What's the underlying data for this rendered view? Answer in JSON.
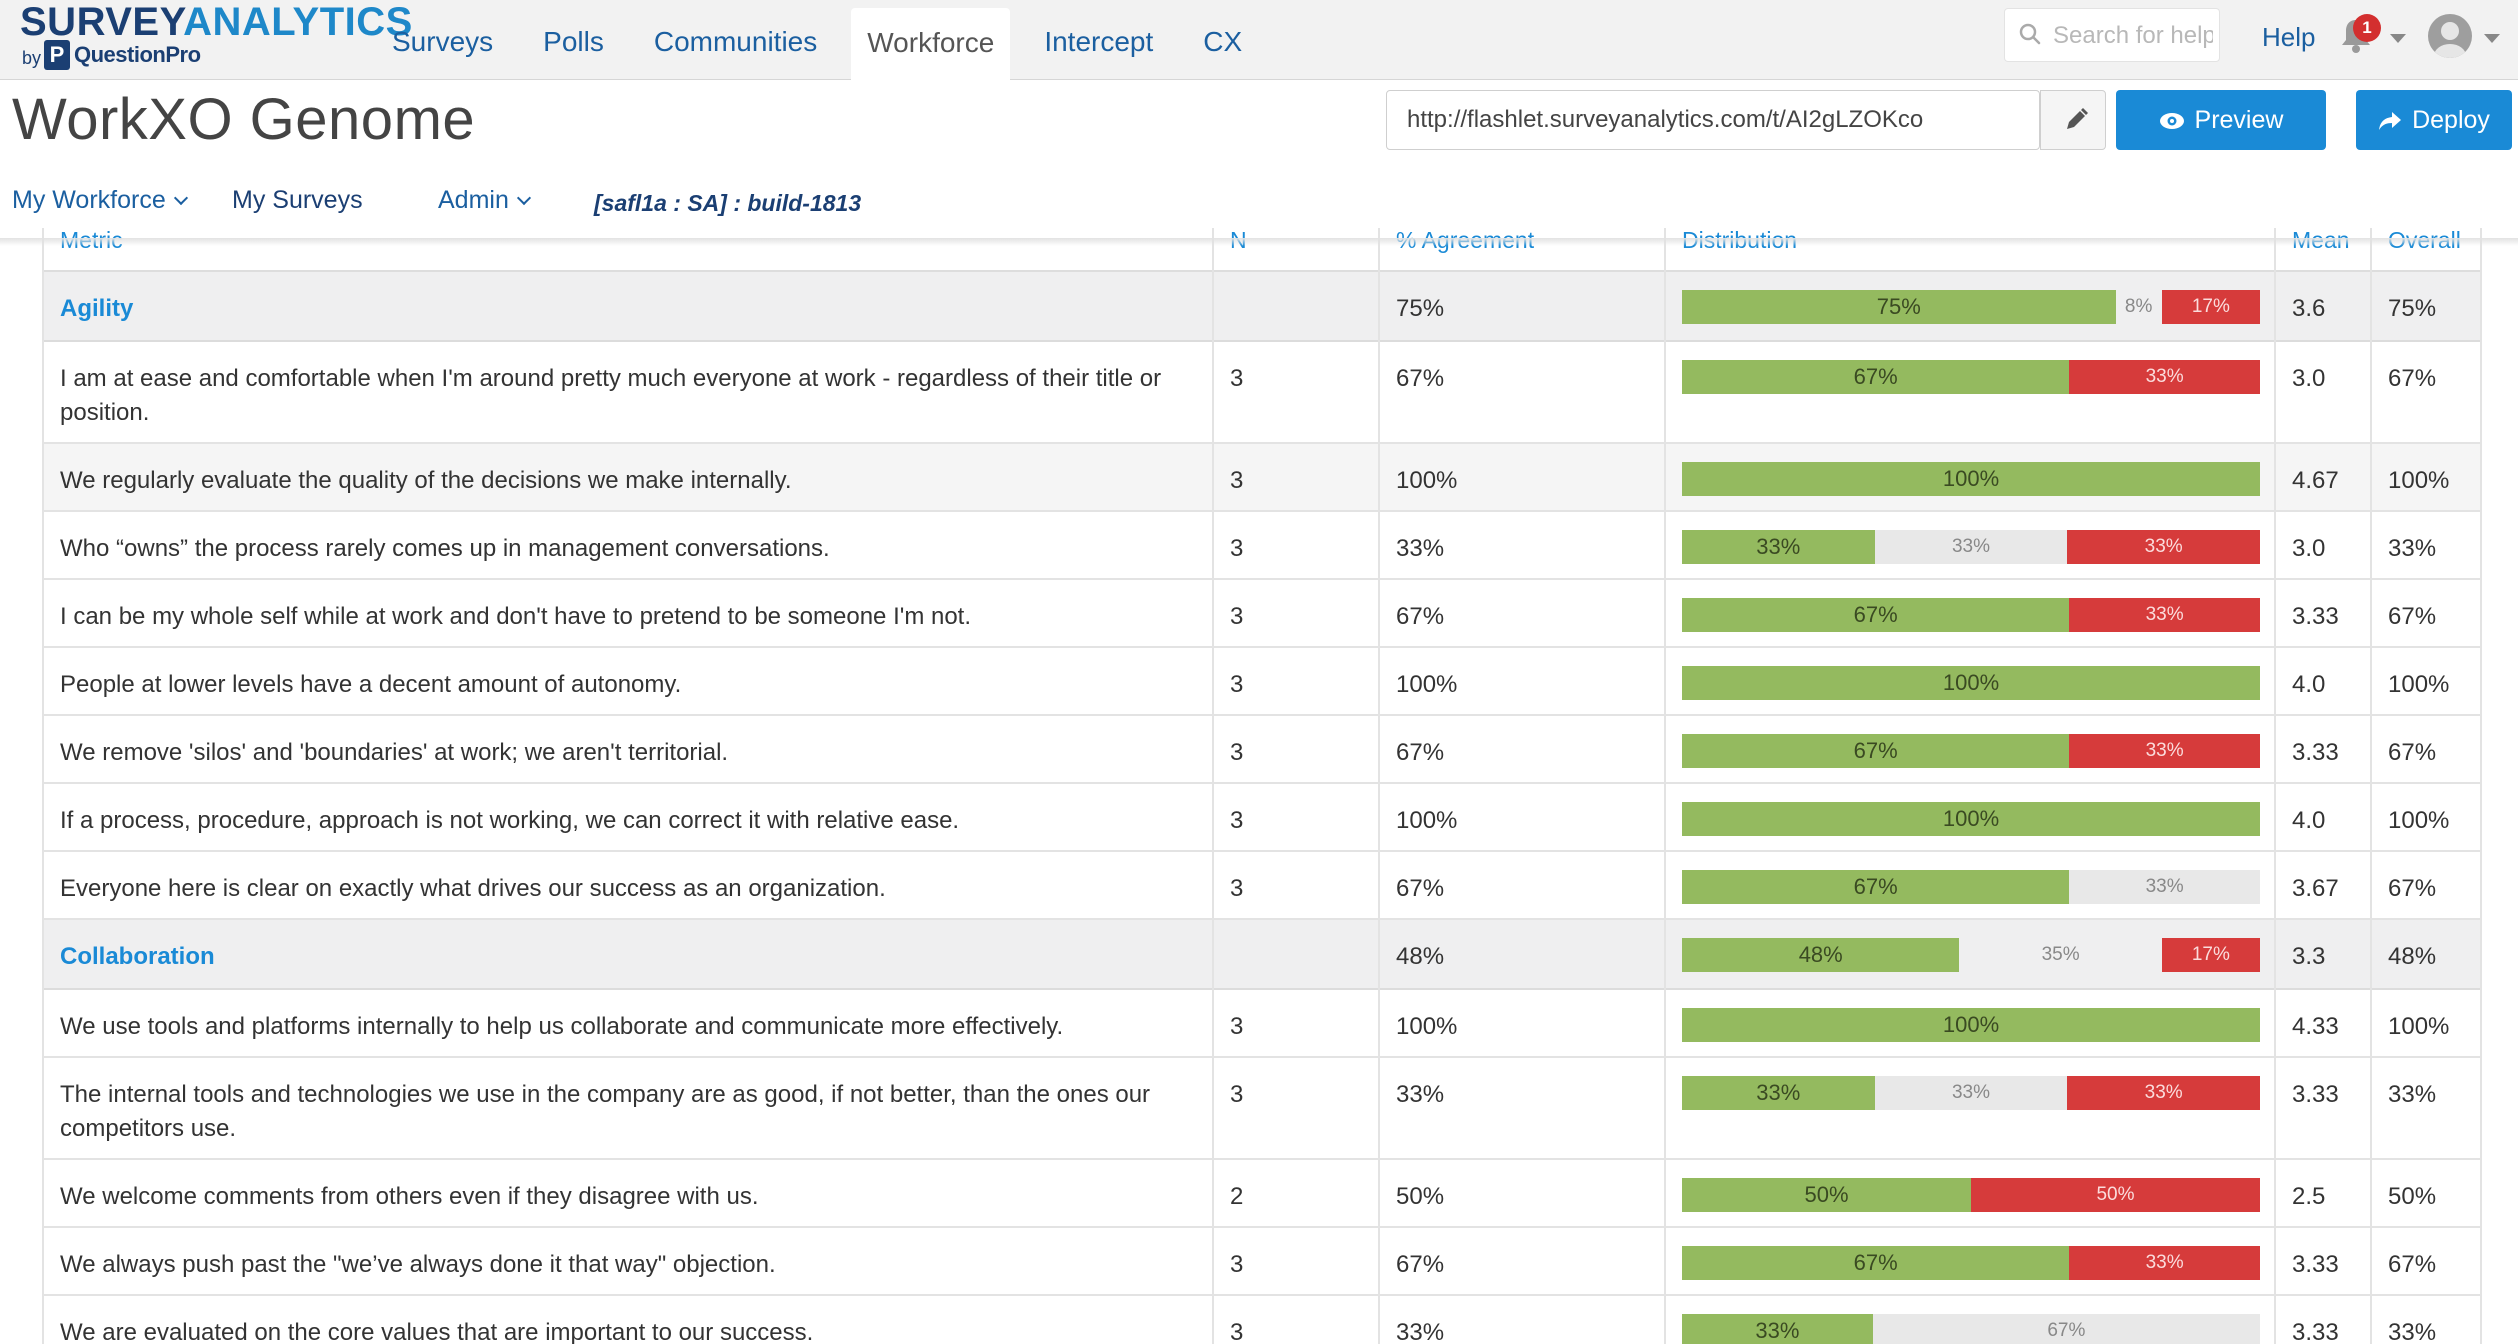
{
  "brand": {
    "name_part1": "SURVEY",
    "name_part2": "ANALYTICS",
    "by": "by",
    "qp_logo": "P",
    "qp_name": "QuestionPro"
  },
  "nav": {
    "tabs": [
      {
        "label": "Surveys"
      },
      {
        "label": "Polls"
      },
      {
        "label": "Communities"
      },
      {
        "label": "Workforce",
        "active": true
      },
      {
        "label": "Intercept"
      },
      {
        "label": "CX"
      }
    ],
    "search_placeholder": "Search for help",
    "help_label": "Help",
    "notification_count": "1"
  },
  "page": {
    "title": "WorkXO Genome",
    "url_value": "http://flashlet.surveyanalytics.com/t/AI2gLZOKco",
    "preview_label": "Preview",
    "deploy_label": "Deploy"
  },
  "subnav": {
    "my_workforce": "My Workforce",
    "my_surveys": "My Surveys",
    "admin": "Admin",
    "build_tag": "[safl1a : SA] :  build-1813"
  },
  "table": {
    "headers": [
      "Metric",
      "N",
      "% Agreement",
      "Distribution",
      "Mean",
      "Overall"
    ],
    "rows": [
      {
        "type": "section",
        "metric": "Agility",
        "n": "",
        "agree": "75%",
        "dist": [
          75,
          8,
          17
        ],
        "labels": [
          "75%",
          "8%",
          "17%"
        ],
        "mean": "3.6",
        "overall": "75%"
      },
      {
        "type": "item",
        "metric": "I am at ease and comfortable when I'm around pretty much everyone at work - regardless of their title or position.",
        "n": "3",
        "agree": "67%",
        "dist": [
          67,
          0,
          33
        ],
        "labels": [
          "67%",
          "",
          "33%"
        ],
        "mean": "3.0",
        "overall": "67%",
        "tall": true
      },
      {
        "type": "item",
        "metric": "We regularly evaluate the quality of the decisions we make internally.",
        "n": "3",
        "agree": "100%",
        "dist": [
          100,
          0,
          0
        ],
        "labels": [
          "100%",
          "",
          ""
        ],
        "mean": "4.67",
        "overall": "100%",
        "alt": true
      },
      {
        "type": "item",
        "metric": "Who “owns” the process rarely comes up in management conversations.",
        "n": "3",
        "agree": "33%",
        "dist": [
          33,
          33,
          33
        ],
        "labels": [
          "33%",
          "33%",
          "33%"
        ],
        "mean": "3.0",
        "overall": "33%"
      },
      {
        "type": "item",
        "metric": "I can be my whole self while at work and don't have to pretend to be someone I'm not.",
        "n": "3",
        "agree": "67%",
        "dist": [
          67,
          0,
          33
        ],
        "labels": [
          "67%",
          "",
          "33%"
        ],
        "mean": "3.33",
        "overall": "67%"
      },
      {
        "type": "item",
        "metric": "People at lower levels have a decent amount of autonomy.",
        "n": "3",
        "agree": "100%",
        "dist": [
          100,
          0,
          0
        ],
        "labels": [
          "100%",
          "",
          ""
        ],
        "mean": "4.0",
        "overall": "100%"
      },
      {
        "type": "item",
        "metric": "We remove 'silos' and 'boundaries' at work; we aren't territorial.",
        "n": "3",
        "agree": "67%",
        "dist": [
          67,
          0,
          33
        ],
        "labels": [
          "67%",
          "",
          "33%"
        ],
        "mean": "3.33",
        "overall": "67%"
      },
      {
        "type": "item",
        "metric": "If a process, procedure, approach is not working, we can correct it with relative ease.",
        "n": "3",
        "agree": "100%",
        "dist": [
          100,
          0,
          0
        ],
        "labels": [
          "100%",
          "",
          ""
        ],
        "mean": "4.0",
        "overall": "100%"
      },
      {
        "type": "item",
        "metric": "Everyone here is clear on exactly what drives our success as an organization.",
        "n": "3",
        "agree": "67%",
        "dist": [
          67,
          33,
          0
        ],
        "labels": [
          "67%",
          "33%",
          ""
        ],
        "mean": "3.67",
        "overall": "67%"
      },
      {
        "type": "section",
        "metric": "Collaboration",
        "n": "",
        "agree": "48%",
        "dist": [
          48,
          35,
          17
        ],
        "labels": [
          "48%",
          "35%",
          "17%"
        ],
        "mean": "3.3",
        "overall": "48%"
      },
      {
        "type": "item",
        "metric": "We use tools and platforms internally to help us collaborate and communicate more effectively.",
        "n": "3",
        "agree": "100%",
        "dist": [
          100,
          0,
          0
        ],
        "labels": [
          "100%",
          "",
          ""
        ],
        "mean": "4.33",
        "overall": "100%"
      },
      {
        "type": "item",
        "metric": "The internal tools and technologies we use in the company are as good, if not better, than the ones our competitors use.",
        "n": "3",
        "agree": "33%",
        "dist": [
          33,
          33,
          33
        ],
        "labels": [
          "33%",
          "33%",
          "33%"
        ],
        "mean": "3.33",
        "overall": "33%",
        "tall": true
      },
      {
        "type": "item",
        "metric": "We welcome comments from others even if they disagree with us.",
        "n": "2",
        "agree": "50%",
        "dist": [
          50,
          0,
          50
        ],
        "labels": [
          "50%",
          "",
          "50%"
        ],
        "mean": "2.5",
        "overall": "50%"
      },
      {
        "type": "item",
        "metric": "We always push past the \"we’ve always done it that way\" objection.",
        "n": "3",
        "agree": "67%",
        "dist": [
          67,
          0,
          33
        ],
        "labels": [
          "67%",
          "",
          "33%"
        ],
        "mean": "3.33",
        "overall": "67%"
      },
      {
        "type": "item",
        "metric": "We are evaluated on the core values that are important to our success.",
        "n": "3",
        "agree": "33%",
        "dist": [
          33,
          67,
          0
        ],
        "labels": [
          "33%",
          "67%",
          ""
        ],
        "mean": "3.33",
        "overall": "33%"
      }
    ]
  },
  "colors": {
    "positive": "#94ba5f",
    "neutral": "#e8e8e8",
    "negative": "#d63b3b",
    "accent": "#1a8ad6",
    "brand": "#1b3f73"
  }
}
